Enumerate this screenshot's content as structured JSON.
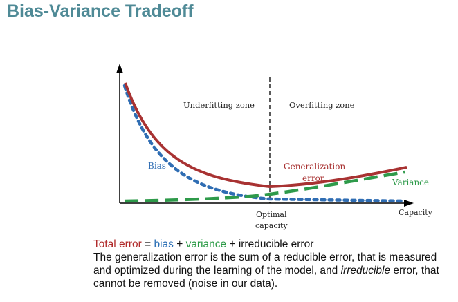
{
  "title": "Bias-Variance Tradeoff",
  "diagram": {
    "zones": {
      "underfitting": "Underfitting zone",
      "overfitting": "Overfitting zone"
    },
    "labels": {
      "bias": "Bias",
      "generalization_line1": "Generalization",
      "generalization_line2": "error",
      "variance": "Variance",
      "optimal_line1": "Optimal",
      "optimal_line2": "capacity",
      "x_axis": "Capacity"
    },
    "colors": {
      "generalization": "#a83232",
      "bias": "#2f6db3",
      "variance": "#2e9a4a",
      "axis": "#000000"
    }
  },
  "caption": {
    "formula": {
      "total": "Total error",
      "eq": " = ",
      "bias": "bias",
      "plus1": " + ",
      "variance": "variance",
      "rest": " + irreducible error"
    },
    "line2": "The generalization error is the sum of a reducible error, that is measured and optimized during the learning of the model, and ",
    "irreducible_word": "irreducible",
    "line2_end": " error, that cannot be removed (noise in our data)."
  }
}
